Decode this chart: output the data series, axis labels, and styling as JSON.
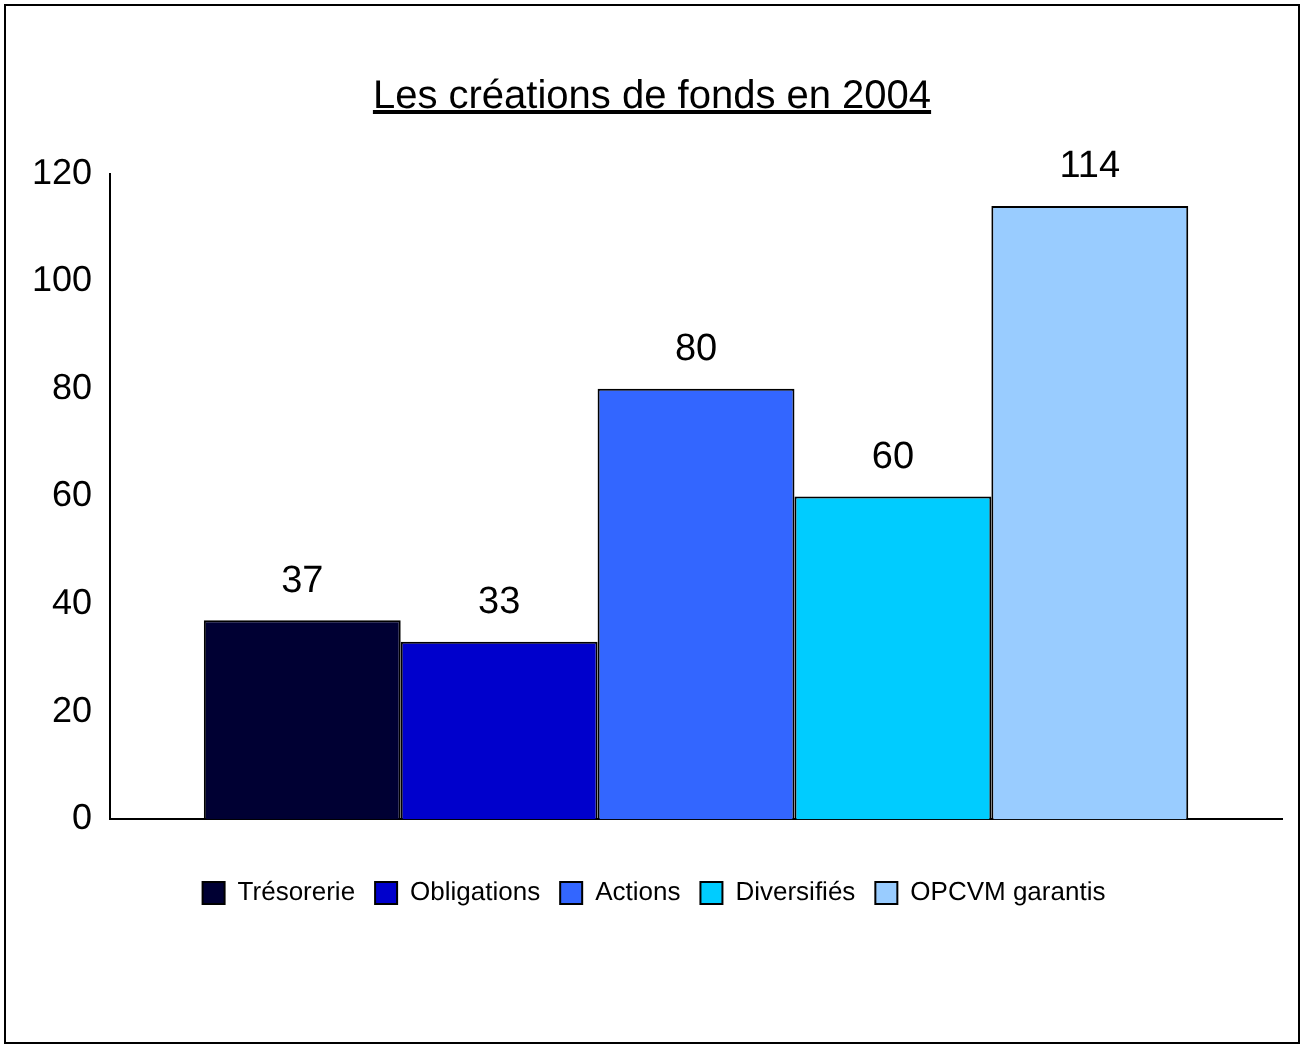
{
  "chart_data": {
    "type": "bar",
    "title": "Les créations de fonds en 2004",
    "categories": [
      null
    ],
    "series": [
      {
        "name": "Trésorerie",
        "color": "#000033",
        "values": [
          37
        ]
      },
      {
        "name": "Obligations",
        "color": "#0000cc",
        "values": [
          33
        ]
      },
      {
        "name": "Actions",
        "color": "#3366ff",
        "values": [
          80
        ]
      },
      {
        "name": "Diversifiés",
        "color": "#00ccff",
        "values": [
          60
        ]
      },
      {
        "name": "OPCVM garantis",
        "color": "#99ccff",
        "values": [
          114
        ]
      }
    ],
    "ylim": [
      0,
      120
    ],
    "yticks": [
      0,
      20,
      40,
      60,
      80,
      100,
      120
    ],
    "grid": false,
    "legend": "bottom",
    "data_labels": true
  }
}
